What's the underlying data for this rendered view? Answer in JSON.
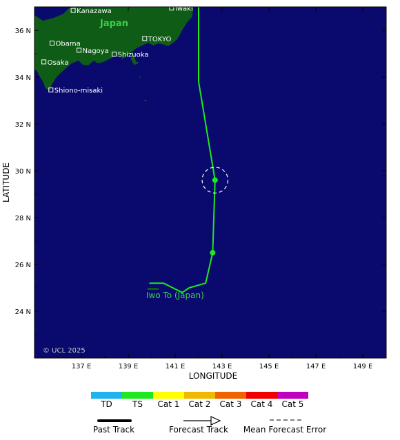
{
  "axes": {
    "xlabel": "LONGITUDE",
    "ylabel": "LATITUDE",
    "lon_range": [
      135,
      150
    ],
    "lat_range": [
      22,
      37
    ],
    "lon_ticks": [
      {
        "value": 137,
        "label": "137 E"
      },
      {
        "value": 139,
        "label": "139 E"
      },
      {
        "value": 141,
        "label": "141 E"
      },
      {
        "value": 143,
        "label": "143 E"
      },
      {
        "value": 145,
        "label": "145 E"
      },
      {
        "value": 147,
        "label": "147 E"
      },
      {
        "value": 149,
        "label": "149 E"
      }
    ],
    "lat_ticks": [
      {
        "value": 24,
        "label": "24 N"
      },
      {
        "value": 26,
        "label": "26 N"
      },
      {
        "value": 28,
        "label": "28 N"
      },
      {
        "value": 30,
        "label": "30 N"
      },
      {
        "value": 32,
        "label": "32 N"
      },
      {
        "value": 34,
        "label": "34 N"
      },
      {
        "value": 36,
        "label": "36 N"
      }
    ]
  },
  "map": {
    "ocean_color": "#0a0a6e",
    "land_color": "#0f5c16",
    "country_label": "Japan",
    "cities": [
      {
        "name": "Kanazawa",
        "lon": 136.65,
        "lat": 36.85
      },
      {
        "name": "Iwaki",
        "lon": 140.85,
        "lat": 36.95
      },
      {
        "name": "TOKYO",
        "lon": 139.7,
        "lat": 35.65
      },
      {
        "name": "Obama",
        "lon": 135.75,
        "lat": 35.45
      },
      {
        "name": "Nagoya",
        "lon": 136.9,
        "lat": 35.15
      },
      {
        "name": "Shizuoka",
        "lon": 138.4,
        "lat": 34.98
      },
      {
        "name": "Osaka",
        "lon": 135.4,
        "lat": 34.65
      },
      {
        "name": "Shiono-misaki",
        "lon": 135.7,
        "lat": 33.45
      }
    ],
    "place_label": "Iwo To (Japan)",
    "copyright": "© UCL 2025"
  },
  "track": {
    "color": "#1ee81e",
    "points": [
      {
        "lon": 139.9,
        "lat": 25.2
      },
      {
        "lon": 140.5,
        "lat": 25.2
      },
      {
        "lon": 141.3,
        "lat": 24.8
      },
      {
        "lon": 141.6,
        "lat": 25.0
      },
      {
        "lon": 142.3,
        "lat": 25.2
      },
      {
        "lon": 142.6,
        "lat": 26.5
      },
      {
        "lon": 142.7,
        "lat": 29.6
      },
      {
        "lon": 142.0,
        "lat": 33.8
      },
      {
        "lon": 142.0,
        "lat": 37.0
      }
    ],
    "forecast_markers": [
      {
        "lon": 142.6,
        "lat": 26.5
      },
      {
        "lon": 142.7,
        "lat": 29.6
      }
    ],
    "error_circle": {
      "lon": 142.7,
      "lat": 29.6,
      "radius_deg": 0.55
    }
  },
  "legend": {
    "categories": [
      {
        "label": "TD",
        "color": "#1eb4f0"
      },
      {
        "label": "TS",
        "color": "#1ee81e"
      },
      {
        "label": "Cat 1",
        "color": "#ffff00"
      },
      {
        "label": "Cat 2",
        "color": "#f0b800"
      },
      {
        "label": "Cat 3",
        "color": "#f06400"
      },
      {
        "label": "Cat 4",
        "color": "#f00000"
      },
      {
        "label": "Cat 5",
        "color": "#c000c0"
      }
    ],
    "past_track": "Past Track",
    "forecast_track": "Forecast Track",
    "mean_error": "Mean Forecast Error"
  }
}
